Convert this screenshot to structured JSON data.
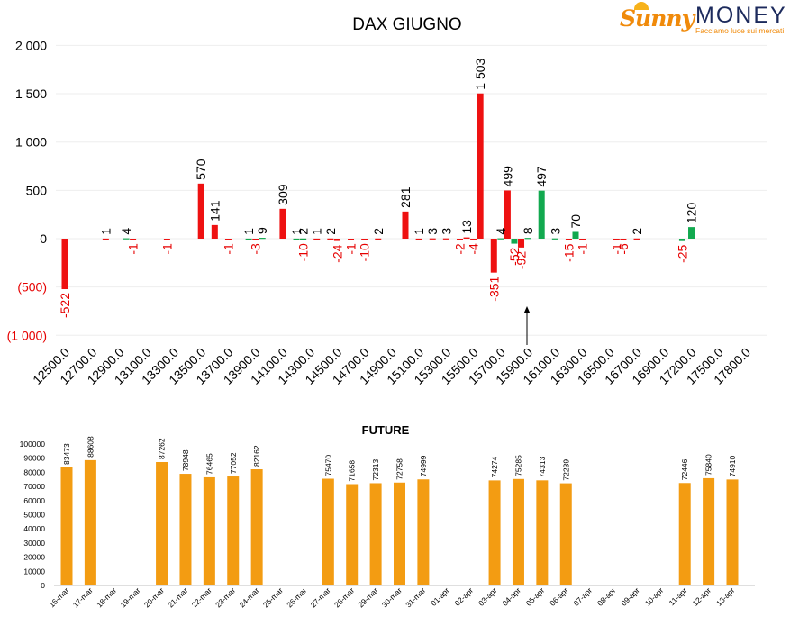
{
  "logo": {
    "brand_part1": "Sunny",
    "brand_part2": "MONEY",
    "tagline": "Facciamo luce sui mercati",
    "colors": {
      "orange": "#f08a0a",
      "navy": "#1c2a5c"
    }
  },
  "chart_data": [
    {
      "type": "bar",
      "title": "DAX GIUGNO",
      "ylim": [
        -1000,
        2000
      ],
      "yticks": [
        2000,
        1500,
        1000,
        500,
        0,
        -500,
        -1000
      ],
      "ytick_labels": [
        "2 000",
        "1 500",
        "1 000",
        "500",
        "0",
        "(500)",
        "(1 000)"
      ],
      "xtick_labels": [
        "12500.0",
        "12700.0",
        "12900.0",
        "13100.0",
        "13300.0",
        "13500.0",
        "13700.0",
        "13900.0",
        "14100.0",
        "14300.0",
        "14500.0",
        "14700.0",
        "14900.0",
        "15100.0",
        "15300.0",
        "15500.0",
        "15700.0",
        "15900.0",
        "16100.0",
        "16300.0",
        "16500.0",
        "16700.0",
        "16900.0",
        "17200.0",
        "17500.0",
        "17800.0"
      ],
      "grid": true,
      "annotation": "arrow pointing to 15900.0",
      "colors": {
        "negative_series": "#ee1111",
        "positive_series": "#12a94f"
      },
      "series": [
        {
          "color": "red",
          "values": [
            {
              "x": "12500.0",
              "y": -522,
              "label": "-522"
            },
            {
              "x": "12800.0",
              "y": 1,
              "label": "1"
            },
            {
              "x": "13000.0",
              "y": -1,
              "label": "-1"
            },
            {
              "x": "13250.0",
              "y": -1,
              "label": "-1"
            },
            {
              "x": "13500.0",
              "y": 570,
              "label": "570"
            },
            {
              "x": "13600.0",
              "y": 141,
              "label": "141"
            },
            {
              "x": "13700.0",
              "y": -1,
              "label": "-1"
            },
            {
              "x": "13900.0",
              "y": -3,
              "label": "-3"
            },
            {
              "x": "14100.0",
              "y": 309,
              "label": "309"
            },
            {
              "x": "14250.0",
              "y": -10,
              "label": "-10"
            },
            {
              "x": "14350.0",
              "y": 1,
              "label": "1"
            },
            {
              "x": "14450.0",
              "y": 2,
              "label": "2"
            },
            {
              "x": "14500.0",
              "y": -24,
              "label": "-24"
            },
            {
              "x": "14600.0",
              "y": -1,
              "label": "-1"
            },
            {
              "x": "14700.0",
              "y": -10,
              "label": "-10"
            },
            {
              "x": "14800.0",
              "y": 2,
              "label": "2"
            },
            {
              "x": "15000.0",
              "y": 281,
              "label": "281"
            },
            {
              "x": "15100.0",
              "y": 1,
              "label": "1"
            },
            {
              "x": "15200.0",
              "y": 3,
              "label": "3"
            },
            {
              "x": "15300.0",
              "y": 3,
              "label": "3"
            },
            {
              "x": "15400.0",
              "y": -2,
              "label": "-2"
            },
            {
              "x": "15450.0",
              "y": 13,
              "label": "13"
            },
            {
              "x": "15500.0",
              "y": -4,
              "label": "-4"
            },
            {
              "x": "15550.0",
              "y": 1503,
              "label": "1 503"
            },
            {
              "x": "15650.0",
              "y": -351,
              "label": "-351"
            },
            {
              "x": "15750.0",
              "y": 499,
              "label": "499"
            },
            {
              "x": "15850.0",
              "y": -92,
              "label": "-92"
            },
            {
              "x": "16200.0",
              "y": -15,
              "label": "-15"
            },
            {
              "x": "16300.0",
              "y": -1,
              "label": "-1"
            },
            {
              "x": "16550.0",
              "y": -1,
              "label": "-1"
            },
            {
              "x": "16600.0",
              "y": -6,
              "label": "-6"
            },
            {
              "x": "16700.0",
              "y": 2,
              "label": "2"
            }
          ]
        },
        {
          "color": "green",
          "values": [
            {
              "x": "12950.0",
              "y": 4,
              "label": "4"
            },
            {
              "x": "13850.0",
              "y": 1,
              "label": "1"
            },
            {
              "x": "13950.0",
              "y": 9,
              "label": "9"
            },
            {
              "x": "14200.0",
              "y": 1,
              "label": "1"
            },
            {
              "x": "14250.0",
              "y": 2,
              "label": "2"
            },
            {
              "x": "15700.0",
              "y": 4,
              "label": "4"
            },
            {
              "x": "15800.0",
              "y": -52,
              "label": "-52"
            },
            {
              "x": "15900.0",
              "y": 8,
              "label": "8"
            },
            {
              "x": "16000.0",
              "y": 497,
              "label": "497"
            },
            {
              "x": "16100.0",
              "y": 3,
              "label": "3"
            },
            {
              "x": "16250.0",
              "y": 70,
              "label": "70"
            },
            {
              "x": "17100.0",
              "y": -25,
              "label": "-25"
            },
            {
              "x": "17200.0",
              "y": 120,
              "label": "120"
            }
          ]
        }
      ]
    },
    {
      "type": "bar",
      "title": "FUTURE",
      "ylim": [
        0,
        100000
      ],
      "yticks": [
        0,
        10000,
        20000,
        30000,
        40000,
        50000,
        60000,
        70000,
        80000,
        90000,
        100000
      ],
      "ytick_labels": [
        "0",
        "10000",
        "20000",
        "30000",
        "40000",
        "50000",
        "60000",
        "70000",
        "80000",
        "90000",
        "100000"
      ],
      "grid": false,
      "colors": {
        "bar": "#f39c12"
      },
      "categories": [
        "16-mar",
        "17-mar",
        "18-mar",
        "19-mar",
        "20-mar",
        "21-mar",
        "22-mar",
        "23-mar",
        "24-mar",
        "25-mar",
        "26-mar",
        "27-mar",
        "28-mar",
        "29-mar",
        "30-mar",
        "31-mar",
        "01-apr",
        "02-apr",
        "03-apr",
        "04-apr",
        "05-apr",
        "06-apr",
        "07-apr",
        "08-apr",
        "09-apr",
        "10-apr",
        "11-apr",
        "12-apr",
        "13-apr"
      ],
      "values": [
        83473,
        88608,
        null,
        null,
        87262,
        78948,
        76465,
        77052,
        82162,
        null,
        null,
        75470,
        71658,
        72313,
        72758,
        74999,
        null,
        null,
        74274,
        75285,
        74313,
        72239,
        null,
        null,
        null,
        null,
        72446,
        75840,
        74910
      ],
      "labels": [
        "83473",
        "88608",
        "",
        "",
        "87262",
        "78948",
        "76465",
        "77052",
        "82162",
        "",
        "",
        "75470",
        "71658",
        "72313",
        "72758",
        "74999",
        "",
        "",
        "74274",
        "75285",
        "74313",
        "72239",
        "",
        "",
        "",
        "",
        "72446",
        "75840",
        "74910"
      ]
    }
  ]
}
